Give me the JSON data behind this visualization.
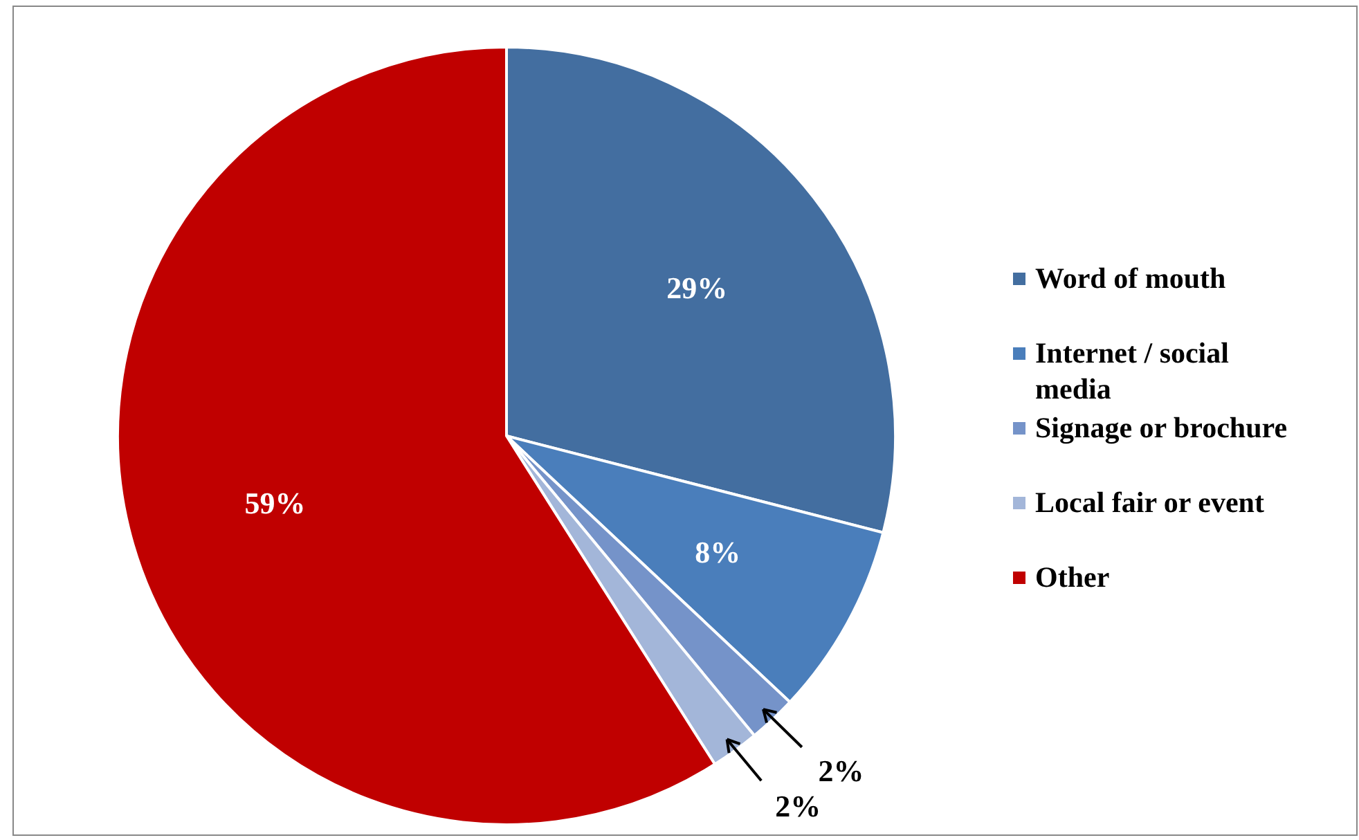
{
  "chart_data": {
    "type": "pie",
    "categories": [
      "Word of mouth",
      "Internet / social media",
      "Signage or brochure",
      "Local fair or event",
      "Other"
    ],
    "values": [
      29,
      8,
      2,
      2,
      59
    ],
    "colors": [
      "#436ea0",
      "#4a7ebb",
      "#7593c9",
      "#a3b6d9",
      "#c00000"
    ],
    "value_labels": [
      "29%",
      "8%",
      "2%",
      "2%",
      "59%"
    ],
    "legend": "right"
  }
}
